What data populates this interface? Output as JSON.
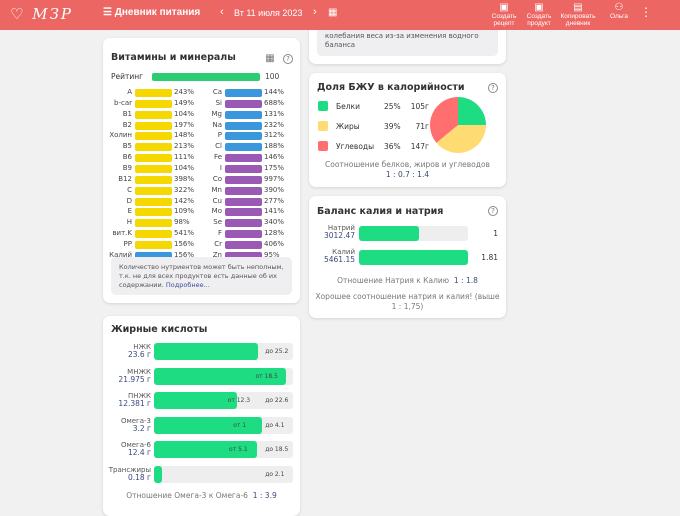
{
  "header": {
    "logo": "МЗР",
    "title": "Дневник питания",
    "date": "Вт 11 июля 2023",
    "prev": "‹",
    "next": "›",
    "buttons": [
      {
        "label": "Создать рецепт"
      },
      {
        "label": "Создать продукт"
      },
      {
        "label": "Копировать дневник"
      },
      {
        "label": "Ольга"
      }
    ]
  },
  "top_card": {
    "text": "колебания веса из-за изменения водного баланса"
  },
  "vitamins": {
    "title": "Витамины и минералы",
    "rating_label": "Рейтинг",
    "rating_value": "100",
    "rating": 100,
    "left": [
      [
        "A",
        "243%"
      ],
      [
        "b-car",
        "149%"
      ],
      [
        "B1",
        "104%"
      ],
      [
        "B2",
        "197%"
      ],
      [
        "Холин",
        "148%"
      ],
      [
        "B5",
        "213%"
      ],
      [
        "B6",
        "111%"
      ],
      [
        "B9",
        "104%"
      ],
      [
        "B12",
        "398%"
      ],
      [
        "C",
        "322%"
      ],
      [
        "D",
        "142%"
      ],
      [
        "E",
        "109%"
      ],
      [
        "H",
        "98%"
      ],
      [
        "вит.K",
        "541%"
      ],
      [
        "PP",
        "156%"
      ],
      [
        "Калий",
        "156%"
      ]
    ],
    "right": [
      [
        "Ca",
        "144%"
      ],
      [
        "Si",
        "688%"
      ],
      [
        "Mg",
        "131%"
      ],
      [
        "Na",
        "232%"
      ],
      [
        "P",
        "312%"
      ],
      [
        "Cl",
        "188%"
      ],
      [
        "Fe",
        "146%"
      ],
      [
        "I",
        "175%"
      ],
      [
        "Co",
        "997%"
      ],
      [
        "Mn",
        "390%"
      ],
      [
        "Cu",
        "277%"
      ],
      [
        "Mo",
        "141%"
      ],
      [
        "Se",
        "340%"
      ],
      [
        "F",
        "128%"
      ],
      [
        "Cr",
        "406%"
      ],
      [
        "Zn",
        "95%"
      ]
    ],
    "note": "Количество нутриентов может быть неполным, т.к. не для всех продуктов есть данные об их содержании.",
    "more": "Подробнее..."
  },
  "colors": {
    "vitamin": "#f5d800",
    "mineral_blue": "#3a97dc",
    "mineral_purple": "#9b59b6",
    "green": "#1edc82",
    "header": "#ec6764",
    "protein": "#1edc82",
    "fat": "#ffdc73",
    "carb": "#ff6f6f"
  },
  "bju": {
    "title": "Доля БЖУ в калорийности",
    "items": [
      {
        "name": "Белки",
        "pct": "25%",
        "g": "105г",
        "value": 25
      },
      {
        "name": "Жиры",
        "pct": "39%",
        "g": "71г",
        "value": 39
      },
      {
        "name": "Углеводы",
        "pct": "36%",
        "g": "147г",
        "value": 36
      }
    ],
    "ratio_label": "Соотношение белков, жиров и углеводов",
    "ratio": "1 : 0.7 : 1.4"
  },
  "balance": {
    "title": "Баланс калия и натрия",
    "rows": [
      {
        "name": "Натрий",
        "value": "3012.47",
        "ratio": "1",
        "fill": 0.55
      },
      {
        "name": "Калий",
        "value": "5461.15",
        "ratio": "1.81",
        "fill": 1
      }
    ],
    "ratio_label": "Отношение Натрия к Калию",
    "ratio": "1 : 1.8",
    "comment": "Хорошее соотношение натрия и калия! (выше 1 : 1,75)"
  },
  "fats": {
    "title": "Жирные кислоты",
    "rows": [
      {
        "name": "НЖК",
        "value": "23.6 г",
        "fill": 0.75,
        "marks": [
          {
            "t": "до 25.2",
            "p": 0.8
          }
        ]
      },
      {
        "name": "МНЖК",
        "value": "21.975 г",
        "fill": 0.95,
        "marks": [
          {
            "t": "от 18.5",
            "p": 0.73
          }
        ]
      },
      {
        "name": "ПНЖК",
        "value": "12.381 г",
        "fill": 0.6,
        "marks": [
          {
            "t": "от 12.3",
            "p": 0.53
          },
          {
            "t": "до 22.6",
            "p": 0.8
          }
        ]
      },
      {
        "name": "Омега-3",
        "value": "3.2 г",
        "fill": 0.78,
        "marks": [
          {
            "t": "от 1",
            "p": 0.57
          },
          {
            "t": "до 4.1",
            "p": 0.8
          }
        ]
      },
      {
        "name": "Омега-6",
        "value": "12.4 г",
        "fill": 0.74,
        "marks": [
          {
            "t": "от 5.1",
            "p": 0.54
          },
          {
            "t": "до 18.5",
            "p": 0.8
          }
        ]
      },
      {
        "name": "Трансжиры",
        "value": "0.18 г",
        "fill": 0.06,
        "marks": [
          {
            "t": "до 2.1",
            "p": 0.8
          }
        ]
      }
    ],
    "ratio_label": "Отношение Омега-3 к Омега-6",
    "ratio": "1 : 3.9"
  }
}
